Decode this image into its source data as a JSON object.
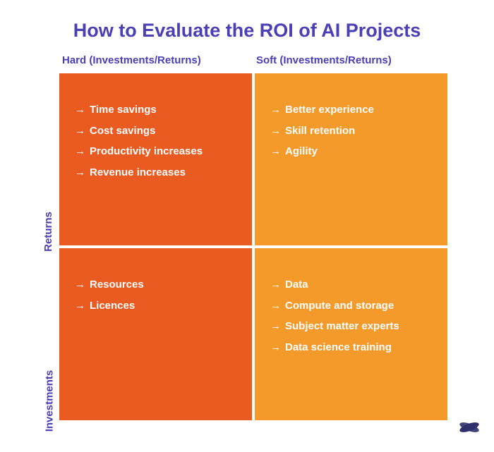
{
  "title": "How to Evaluate the ROI of AI Projects",
  "colors": {
    "title": "#4a3fb5",
    "header": "#4a3fb5",
    "rowLabel": "#4a3fb5",
    "cellText": "#ffffff",
    "gap": "#ffffff",
    "logo": "#2f2f6d"
  },
  "columns": [
    {
      "label": "Hard (Investments/Returns)"
    },
    {
      "label": "Soft (Investments/Returns)"
    }
  ],
  "rows": [
    {
      "label": "Returns"
    },
    {
      "label": "Investments"
    }
  ],
  "matrix": {
    "type": "2x2-quadrant",
    "cells": [
      {
        "row": 0,
        "col": 0,
        "bg": "#ea5b22",
        "items": [
          "Time savings",
          "Cost savings",
          "Productivity increases",
          "Revenue increases"
        ]
      },
      {
        "row": 0,
        "col": 1,
        "bg": "#f39a2b",
        "items": [
          "Better experience",
          "Skill retention",
          "Agility"
        ]
      },
      {
        "row": 1,
        "col": 0,
        "bg": "#ea5b22",
        "items": [
          "Resources",
          "Licences"
        ]
      },
      {
        "row": 1,
        "col": 1,
        "bg": "#f39a2b",
        "items": [
          "Data",
          "Compute and storage",
          "Subject matter experts",
          "Data science training"
        ]
      }
    ]
  },
  "arrowGlyph": "→"
}
